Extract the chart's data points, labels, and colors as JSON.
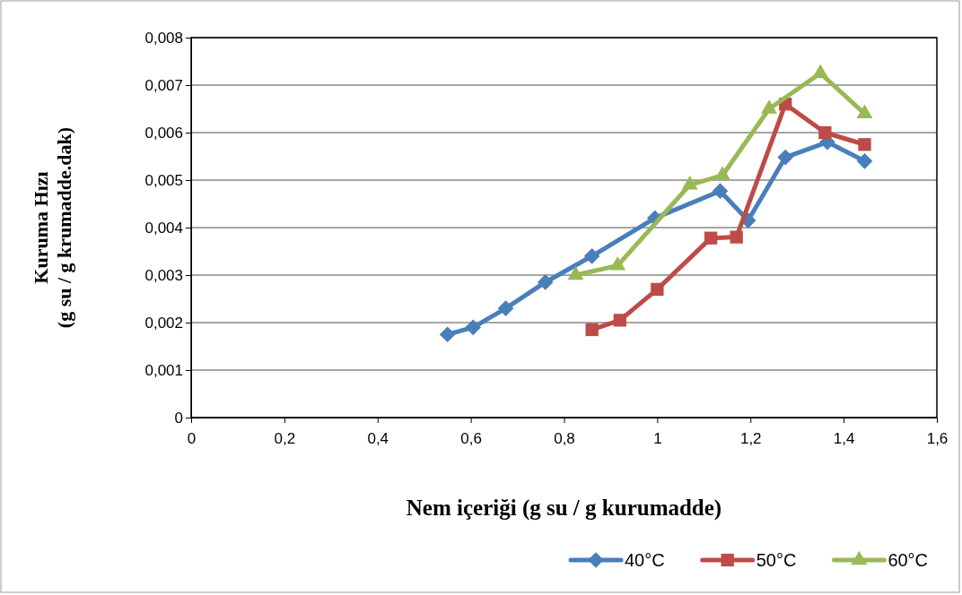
{
  "chart_data": {
    "type": "line",
    "xlabel": "Nem içeriği (g su / g kurumadde)",
    "ylabel": "Kuruma Hızı\n(g su / g krumadde.dak)",
    "xlim": [
      0,
      1.6
    ],
    "xticks": [
      0,
      {
        "value": 0.2,
        "label": "0,2"
      },
      {
        "value": 0.4,
        "label": "0,4"
      },
      {
        "value": 0.6,
        "label": "0,6"
      },
      {
        "value": 0.8,
        "label": "0,8"
      },
      1,
      {
        "value": 1.2,
        "label": "1,2"
      },
      {
        "value": 1.4,
        "label": "1,4"
      },
      {
        "value": 1.6,
        "label": "1,6"
      }
    ],
    "ylim": [
      0,
      0.008
    ],
    "yticks": [
      0,
      {
        "value": 0.001,
        "label": "0,001"
      },
      {
        "value": 0.002,
        "label": "0,002"
      },
      {
        "value": 0.003,
        "label": "0,003"
      },
      {
        "value": 0.004,
        "label": "0,004"
      },
      {
        "value": 0.005,
        "label": "0,005"
      },
      {
        "value": 0.006,
        "label": "0,006"
      },
      {
        "value": 0.007,
        "label": "0,007"
      },
      {
        "value": 0.008,
        "label": "0,008"
      }
    ],
    "grid": "y",
    "legend": "bottom right",
    "series": [
      {
        "name": "40°C",
        "color": "#4a7ebb",
        "marker": "diamond",
        "x": [
          0.55,
          0.605,
          0.675,
          0.76,
          0.86,
          0.995,
          1.135,
          1.195,
          1.275,
          1.365,
          1.445
        ],
        "values": [
          0.00175,
          0.0019,
          0.0023,
          0.00285,
          0.0034,
          0.0042,
          0.00477,
          0.00415,
          0.00548,
          0.0058,
          0.0054
        ]
      },
      {
        "name": "50°C",
        "color": "#be4b48",
        "marker": "square",
        "x": [
          0.86,
          0.92,
          1.0,
          1.115,
          1.17,
          1.275,
          1.36,
          1.445
        ],
        "values": [
          0.00185,
          0.00205,
          0.0027,
          0.00378,
          0.0038,
          0.0066,
          0.006,
          0.00575
        ]
      },
      {
        "name": "60°C",
        "color": "#98b954",
        "marker": "triangle",
        "x": [
          0.825,
          0.915,
          1.07,
          1.14,
          1.24,
          1.35,
          1.445
        ],
        "values": [
          0.003,
          0.0032,
          0.0049,
          0.0051,
          0.0065,
          0.00725,
          0.0064
        ]
      }
    ]
  }
}
